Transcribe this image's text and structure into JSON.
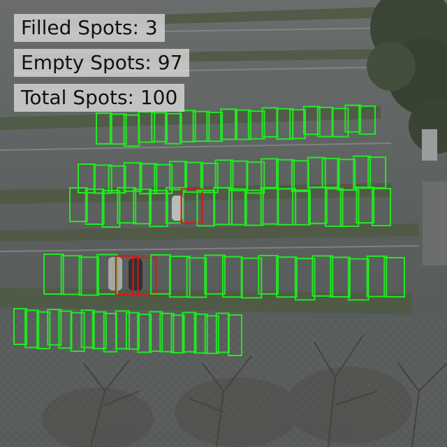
{
  "stats": {
    "filled_label": "Filled Spots: 3",
    "empty_label": "Empty Spots: 97",
    "total_label": "Total Spots: 100"
  },
  "parking": {
    "filled": 3,
    "empty": 97,
    "total": 100
  },
  "colors": {
    "empty_spot": "#22e822",
    "filled_spot": "#e01414",
    "pavement": "#5d6160",
    "stat_panel": "#d7d7d7"
  }
}
